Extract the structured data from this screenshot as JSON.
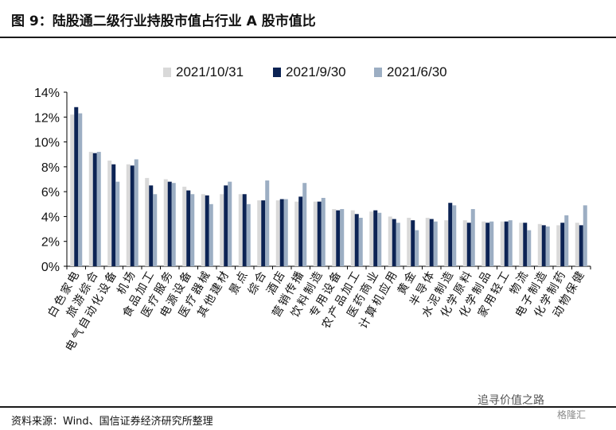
{
  "header": {
    "title": "图 9：陆股通二级行业持股市值占行业 A 股市值比"
  },
  "footer": {
    "source": "资料来源：Wind、国信证券经济研究所整理",
    "watermark": "追寻价值之路",
    "watermark_logo": "格隆汇"
  },
  "colors": {
    "series_1": "#d9d9d9",
    "series_2": "#0c2354",
    "series_3": "#9caec3",
    "axis": "#000000"
  },
  "chart_data": {
    "type": "bar",
    "title": "",
    "xlabel": "",
    "ylabel": "",
    "ylim": [
      0,
      14
    ],
    "yticks": [
      "0%",
      "2%",
      "4%",
      "6%",
      "8%",
      "10%",
      "12%",
      "14%"
    ],
    "grid": false,
    "legend_position": "top",
    "categories": [
      "白色家电",
      "旅游综合",
      "电气自动化设备",
      "机场",
      "食品加工",
      "医疗服务",
      "电源设备",
      "医疗器械",
      "其他建材",
      "景点",
      "综合",
      "酒店",
      "营销传播",
      "饮料制造",
      "专用设备",
      "农产品加工",
      "医药商业",
      "计算机应用",
      "黄金",
      "半导体",
      "水泥制造",
      "化学原料",
      "化学制品",
      "家用轻工",
      "物流",
      "电子制造",
      "化学制药",
      "动物保健"
    ],
    "series": [
      {
        "name": "2021/10/31",
        "values": [
          12.2,
          9.2,
          8.5,
          8.2,
          7.1,
          7.0,
          6.4,
          5.8,
          5.8,
          5.8,
          5.3,
          5.3,
          5.2,
          5.2,
          4.6,
          4.5,
          4.4,
          4.0,
          3.9,
          3.9,
          3.7,
          3.7,
          3.6,
          3.6,
          3.5,
          3.4,
          3.3,
          3.5
        ]
      },
      {
        "name": "2021/9/30",
        "values": [
          12.8,
          9.1,
          8.2,
          8.1,
          6.5,
          6.8,
          6.1,
          5.7,
          6.5,
          5.8,
          5.3,
          5.4,
          5.6,
          5.2,
          4.5,
          4.2,
          4.5,
          3.8,
          3.7,
          3.8,
          5.1,
          3.5,
          3.5,
          3.6,
          3.5,
          3.3,
          3.5,
          3.3
        ]
      },
      {
        "name": "2021/6/30",
        "values": [
          12.3,
          9.2,
          6.8,
          8.6,
          5.8,
          6.7,
          5.8,
          5.0,
          6.8,
          5.0,
          6.9,
          5.4,
          6.7,
          5.5,
          4.6,
          3.9,
          4.3,
          3.5,
          2.9,
          3.6,
          4.9,
          4.6,
          3.6,
          3.7,
          2.9,
          3.2,
          4.1,
          4.9
        ]
      }
    ]
  }
}
